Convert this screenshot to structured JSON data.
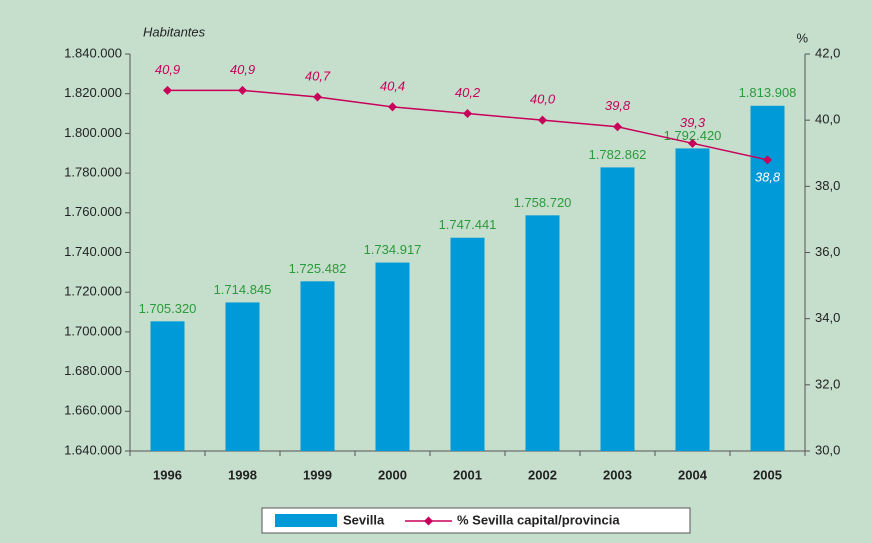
{
  "chart_data": {
    "type": "bar_line",
    "categories": [
      "1996",
      "1998",
      "1999",
      "2000",
      "2001",
      "2002",
      "2003",
      "2004",
      "2005"
    ],
    "series": [
      {
        "name": "Sevilla",
        "type": "bar",
        "color": "#009ad8",
        "values": [
          1705320,
          1714845,
          1725482,
          1734917,
          1747441,
          1758720,
          1782862,
          1792420,
          1813908
        ],
        "value_labels": [
          "1.705.320",
          "1.714.845",
          "1.725.482",
          "1.734.917",
          "1.747.441",
          "1.758.720",
          "1.782.862",
          "1.792.420",
          "1.813.908"
        ]
      },
      {
        "name": "% Sevilla capital/provincia",
        "type": "line",
        "axis": "y2",
        "color": "#c8005a",
        "values": [
          40.9,
          40.9,
          40.7,
          40.4,
          40.2,
          40.0,
          39.8,
          39.3,
          38.8
        ],
        "value_labels": [
          "40,9",
          "40,9",
          "40,7",
          "40,4",
          "40,2",
          "40,0",
          "39,8",
          "39,3",
          "38,8"
        ]
      }
    ],
    "ylabel": "Habitantes",
    "y2label": "%",
    "ylim": [
      1640000,
      1840000
    ],
    "yticks": [
      {
        "value": 1640000,
        "label": "1.640.000"
      },
      {
        "value": 1660000,
        "label": "1.660.000"
      },
      {
        "value": 1680000,
        "label": "1.680.000"
      },
      {
        "value": 1700000,
        "label": "1.700.000"
      },
      {
        "value": 1720000,
        "label": "1.720.000"
      },
      {
        "value": 1740000,
        "label": "1.740.000"
      },
      {
        "value": 1760000,
        "label": "1.760.000"
      },
      {
        "value": 1780000,
        "label": "1.780.000"
      },
      {
        "value": 1800000,
        "label": "1.800.000"
      },
      {
        "value": 1820000,
        "label": "1.820.000"
      },
      {
        "value": 1840000,
        "label": "1.840.000"
      }
    ],
    "y2lim": [
      30,
      42
    ],
    "y2ticks": [
      {
        "value": 30,
        "label": "30,0"
      },
      {
        "value": 32,
        "label": "32,0"
      },
      {
        "value": 34,
        "label": "34,0"
      },
      {
        "value": 36,
        "label": "36,0"
      },
      {
        "value": 38,
        "label": "38,0"
      },
      {
        "value": 40,
        "label": "40,0"
      },
      {
        "value": 42,
        "label": "42,0"
      }
    ],
    "legend": "bottom"
  }
}
